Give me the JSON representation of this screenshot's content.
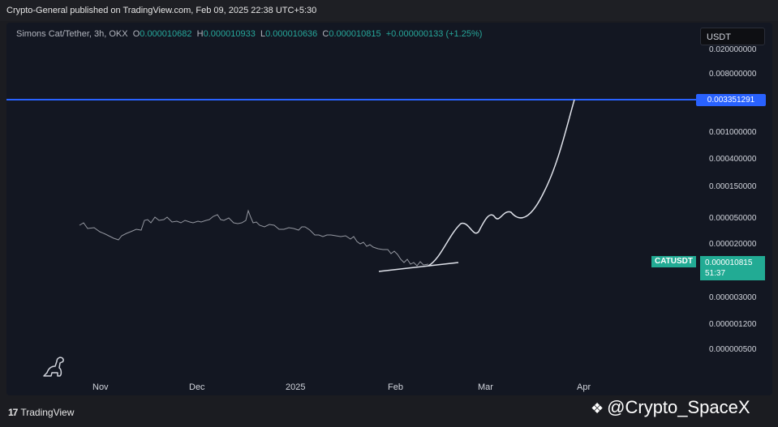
{
  "header": {
    "published": "Crypto-General published on TradingView.com, Feb 09, 2025 22:38 UTC+5:30"
  },
  "legend": {
    "symbol": "Simons Cat/Tether, 3h, OKX",
    "o_label": "O",
    "o_value": "0.000010682",
    "h_label": "H",
    "h_value": "0.000010933",
    "l_label": "L",
    "l_value": "0.000010636",
    "c_label": "C",
    "c_value": "0.000010815",
    "change": "+0.000000133 (+1.25%)"
  },
  "currency_button": "USDT",
  "y_axis": {
    "ticks": [
      "0.020000000",
      "0.008000000",
      "0.001000000",
      "0.000400000",
      "0.000150000",
      "0.000050000",
      "0.000020000",
      "0.000003000",
      "0.000001200",
      "0.000000500"
    ],
    "hline_label": "0.003351291"
  },
  "x_axis": {
    "ticks": [
      "Nov",
      "Dec",
      "2025",
      "Feb",
      "Mar",
      "Apr"
    ]
  },
  "last_price": {
    "symbol": "CATUSDT",
    "price": "0.000010815",
    "countdown": "51:37"
  },
  "footer": {
    "brand_mark": "17",
    "brand": "TradingView"
  },
  "watermark": "@Crypto_SpaceX",
  "colors": {
    "background": "#131722",
    "hline": "#2962ff",
    "accent_green": "#22ab94",
    "price_line": "#9598a1"
  },
  "icons": {
    "currency": "usdt-button",
    "dino": "dino-icon",
    "watermark": "binance-diamond-icon"
  }
}
